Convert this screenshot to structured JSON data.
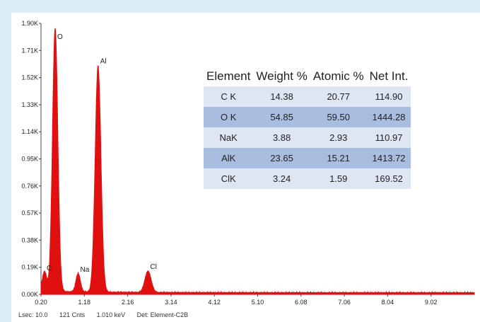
{
  "chart_data": {
    "type": "line",
    "title": "",
    "xlabel": "",
    "ylabel": "",
    "xlim": [
      0.2,
      10.0
    ],
    "ylim": [
      0,
      1.9
    ],
    "x_ticks": [
      "0.20",
      "1.18",
      "2.16",
      "3.14",
      "4.12",
      "5.10",
      "6.08",
      "7.06",
      "8.04",
      "9.02"
    ],
    "y_ticks": [
      "0.00K",
      "0.19K",
      "0.38K",
      "0.57K",
      "0.76K",
      "0.95K",
      "1.14K",
      "1.33K",
      "1.52K",
      "1.71K",
      "1.90K"
    ],
    "series_color": "#e01010",
    "peaks": [
      {
        "label": "C",
        "energy": 0.28,
        "counts": 0.14
      },
      {
        "label": "O",
        "energy": 0.52,
        "counts": 1.85
      },
      {
        "label": "Na",
        "energy": 1.04,
        "counts": 0.13
      },
      {
        "label": "Al",
        "energy": 1.49,
        "counts": 1.59
      },
      {
        "label": "Cl",
        "energy": 2.62,
        "counts": 0.15
      }
    ],
    "peak_widths": [
      0.05,
      0.06,
      0.05,
      0.065,
      0.07
    ],
    "table": {
      "headers": [
        "Element",
        "Weight %",
        "Atomic %",
        "Net Int."
      ],
      "rows": [
        [
          "C K",
          "14.38",
          "20.77",
          "114.90"
        ],
        [
          "O K",
          "54.85",
          "59.50",
          "1444.28"
        ],
        [
          "NaK",
          "3.88",
          "2.93",
          "110.97"
        ],
        [
          "AlK",
          "23.65",
          "15.21",
          "1413.72"
        ],
        [
          "ClK",
          "3.24",
          "1.59",
          "169.52"
        ]
      ]
    }
  },
  "status_bar": {
    "lsec": "Lsec: 10.0",
    "cnts": "121 Cnts",
    "kev": "1.010 keV",
    "det": "Det: Element-C2B"
  }
}
